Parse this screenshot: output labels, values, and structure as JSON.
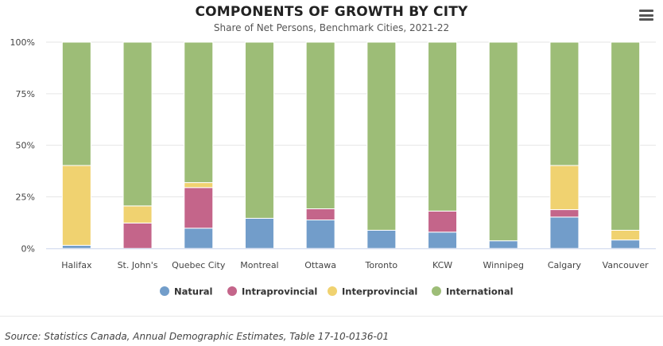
{
  "menu_icon": "hamburger-menu-icon",
  "source": "Source: Statistics Canada, Annual Demographic Estimates, Table 17-10-0136-01",
  "chart_data": {
    "type": "bar",
    "stacked": true,
    "title": "COMPONENTS OF GROWTH BY CITY",
    "subtitle": "Share of Net Persons, Benchmark Cities, 2021-22",
    "xlabel": "",
    "ylabel": "",
    "ylim": [
      0,
      100
    ],
    "yticks": [
      "0%",
      "25%",
      "50%",
      "75%",
      "100%"
    ],
    "grid": true,
    "legend_position": "bottom",
    "categories": [
      "Halifax",
      "St. John's",
      "Quebec City",
      "Montreal",
      "Ottawa",
      "Toronto",
      "KCW",
      "Winnipeg",
      "Calgary",
      "Vancouver"
    ],
    "series": [
      {
        "name": "Natural",
        "color": "#729dca",
        "values": [
          1.5,
          0,
          9.8,
          14.6,
          13.8,
          8.8,
          7.9,
          3.7,
          15.2,
          4.1
        ]
      },
      {
        "name": "Intraprovincial",
        "color": "#c4658a",
        "values": [
          0,
          12.3,
          19.7,
          0,
          5.4,
          0,
          10.2,
          0,
          3.6,
          0
        ]
      },
      {
        "name": "Interprovincial",
        "color": "#f0d270",
        "values": [
          38.7,
          8.3,
          2.4,
          0,
          0,
          0,
          0,
          0,
          21.4,
          4.7
        ]
      },
      {
        "name": "International",
        "color": "#9dbd77",
        "values": [
          59.8,
          79.4,
          68.1,
          85.4,
          80.8,
          91.2,
          81.9,
          96.3,
          59.8,
          91.2
        ]
      }
    ]
  }
}
